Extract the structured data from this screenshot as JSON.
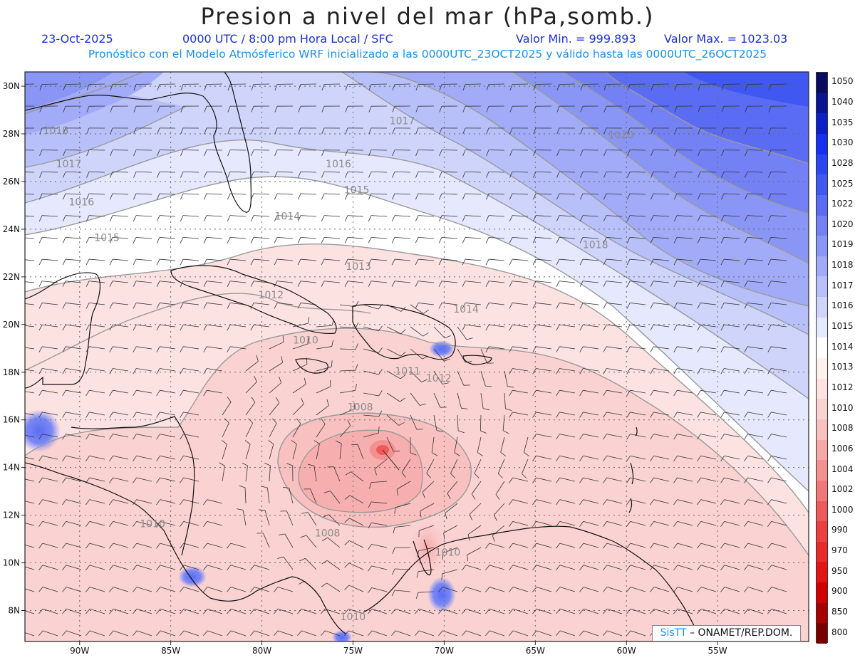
{
  "header": {
    "title": "Presion a nivel del mar (hPa,somb.)",
    "date": "23-Oct-2025",
    "time": "0000 UTC / 8:00 pm Hora Local / SFC",
    "valmin": "Valor Min. = 999.893",
    "valmax": "Valor Max. = 1023.03",
    "forecast": "Pronóstico con el Modelo Atmósferico WRF inicializado a las 0000UTC_23OCT2025 y válido hasta las  0000UTC_26OCT2025"
  },
  "map": {
    "lon_range": [
      -93,
      -50
    ],
    "lat_range": [
      6.7,
      30.6
    ],
    "lon_ticks": [
      "90W",
      "85W",
      "80W",
      "75W",
      "70W",
      "65W",
      "60W",
      "55W"
    ],
    "lat_ticks": [
      "8N",
      "10N",
      "12N",
      "14N",
      "16N",
      "18N",
      "20N",
      "22N",
      "24N",
      "26N",
      "28N",
      "30N"
    ],
    "contour_labels": [
      {
        "text": "1018",
        "lon": -91.3,
        "lat": 28.0
      },
      {
        "text": "1017",
        "lon": -90.6,
        "lat": 26.6
      },
      {
        "text": "1016",
        "lon": -89.9,
        "lat": 25.0
      },
      {
        "text": "1015",
        "lon": -88.5,
        "lat": 23.5
      },
      {
        "text": "1014",
        "lon": -78.6,
        "lat": 24.4
      },
      {
        "text": "1015",
        "lon": -74.8,
        "lat": 25.5
      },
      {
        "text": "1016",
        "lon": -75.8,
        "lat": 26.6
      },
      {
        "text": "1017",
        "lon": -72.3,
        "lat": 28.4
      },
      {
        "text": "1018",
        "lon": -61.7,
        "lat": 23.2
      },
      {
        "text": "1020",
        "lon": -60.3,
        "lat": 27.8
      },
      {
        "text": "1013",
        "lon": -74.7,
        "lat": 22.3
      },
      {
        "text": "1012",
        "lon": -79.5,
        "lat": 21.1
      },
      {
        "text": "1014",
        "lon": -68.8,
        "lat": 20.5
      },
      {
        "text": "1010",
        "lon": -77.6,
        "lat": 19.2
      },
      {
        "text": "1011",
        "lon": -72.0,
        "lat": 17.9
      },
      {
        "text": "1012",
        "lon": -70.3,
        "lat": 17.6
      },
      {
        "text": "1008",
        "lon": -74.6,
        "lat": 16.4
      },
      {
        "text": "1008",
        "lon": -76.4,
        "lat": 11.1
      },
      {
        "text": "1010",
        "lon": -86.0,
        "lat": 11.5
      },
      {
        "text": "1010",
        "lon": -69.8,
        "lat": 10.3
      },
      {
        "text": "1010",
        "lon": -75.0,
        "lat": 7.6
      }
    ],
    "min_center": {
      "lon": -73.9,
      "lat": 14.7
    },
    "colors": {
      "frame": "#222222",
      "grid": "#666666",
      "coast": "#111111",
      "contour": "#9a9a9a",
      "barb": "#333333"
    }
  },
  "colorbar": {
    "levels": [
      {
        "label": "1050",
        "color": "#0a0a60"
      },
      {
        "label": "1040",
        "color": "#0a1590"
      },
      {
        "label": "1035",
        "color": "#0d20c8"
      },
      {
        "label": "1030",
        "color": "#1530f0"
      },
      {
        "label": "1028",
        "color": "#2a45f2"
      },
      {
        "label": "1025",
        "color": "#4057f2"
      },
      {
        "label": "1022",
        "color": "#5a6cf3"
      },
      {
        "label": "1020",
        "color": "#7381f4"
      },
      {
        "label": "1019",
        "color": "#8a96f5"
      },
      {
        "label": "1018",
        "color": "#a1abf7"
      },
      {
        "label": "1017",
        "color": "#b8c0f9"
      },
      {
        "label": "1016",
        "color": "#cfd4fb"
      },
      {
        "label": "1015",
        "color": "#e6e8fd"
      },
      {
        "label": "1014",
        "color": "#ffffff"
      },
      {
        "label": "1013",
        "color": "#fff0f0"
      },
      {
        "label": "1012",
        "color": "#fde2e2"
      },
      {
        "label": "1010",
        "color": "#fbd2d2"
      },
      {
        "label": "1008",
        "color": "#f9c0c0"
      },
      {
        "label": "1006",
        "color": "#f6a8a8"
      },
      {
        "label": "1004",
        "color": "#f39090"
      },
      {
        "label": "1002",
        "color": "#f07878"
      },
      {
        "label": "1000",
        "color": "#ee5a5a"
      },
      {
        "label": "990",
        "color": "#ec4040"
      },
      {
        "label": "970",
        "color": "#e82a2a"
      },
      {
        "label": "950",
        "color": "#e21414"
      },
      {
        "label": "900",
        "color": "#d00000"
      },
      {
        "label": "850",
        "color": "#a80000"
      },
      {
        "label": "800",
        "color": "#7a0000"
      }
    ]
  },
  "credit": {
    "sis": "SisTT",
    "org": " – ONAMET/REP.DOM."
  }
}
